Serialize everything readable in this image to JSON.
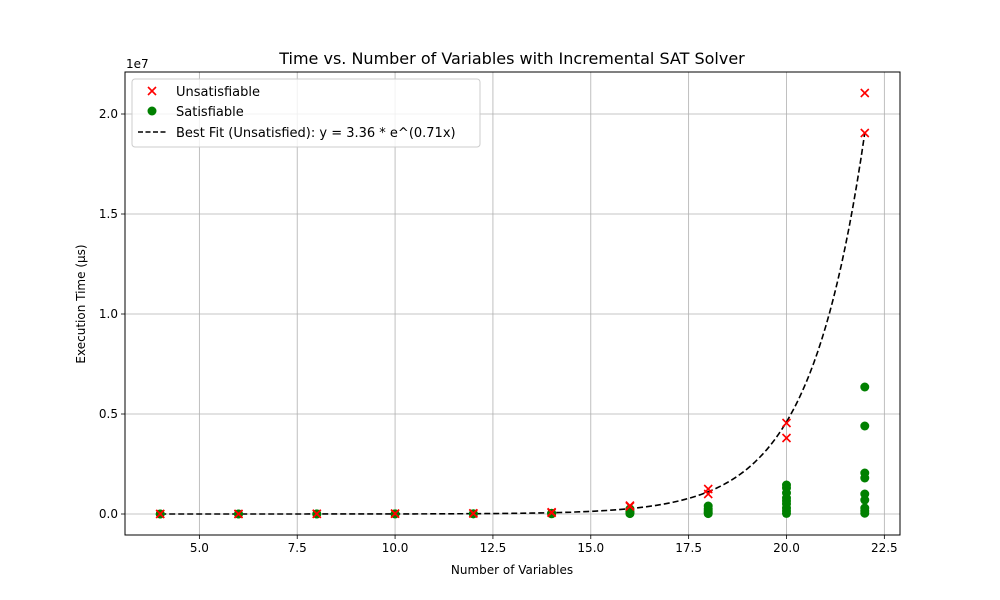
{
  "chart_data": {
    "type": "scatter",
    "title": "Time vs. Number of Variables with Incremental SAT Solver",
    "xlabel": "Number of Variables",
    "ylabel": "Execution Time (μs)",
    "y_multiplier_label": "1e7",
    "xlim": [
      3.1,
      22.9
    ],
    "ylim": [
      -1050000,
      22100000
    ],
    "x_ticks": [
      5.0,
      7.5,
      10.0,
      12.5,
      15.0,
      17.5,
      20.0,
      22.5
    ],
    "x_tick_labels": [
      "5.0",
      "7.5",
      "10.0",
      "12.5",
      "15.0",
      "17.5",
      "20.0",
      "22.5"
    ],
    "y_ticks": [
      0,
      5000000,
      10000000,
      15000000,
      20000000
    ],
    "y_tick_labels": [
      "0.0",
      "0.5",
      "1.0",
      "1.5",
      "2.0"
    ],
    "grid": true,
    "legend_position": "top-left",
    "series": [
      {
        "name": "Unsatisfiable",
        "marker": "x",
        "color": "#ff0000",
        "points": [
          [
            4,
            2000
          ],
          [
            4,
            3000
          ],
          [
            6,
            4000
          ],
          [
            6,
            6000
          ],
          [
            8,
            8000
          ],
          [
            8,
            12000
          ],
          [
            10,
            15000
          ],
          [
            10,
            20000
          ],
          [
            12,
            25000
          ],
          [
            12,
            35000
          ],
          [
            14,
            60000
          ],
          [
            14,
            90000
          ],
          [
            16,
            380000
          ],
          [
            16,
            420000
          ],
          [
            18,
            1000000
          ],
          [
            18,
            1250000
          ],
          [
            20,
            3800000
          ],
          [
            20,
            4550000
          ],
          [
            22,
            19050000
          ],
          [
            22,
            21050000
          ]
        ]
      },
      {
        "name": "Satisfiable",
        "marker": "o",
        "color": "#008000",
        "points": [
          [
            4,
            1000
          ],
          [
            4,
            2000
          ],
          [
            6,
            2000
          ],
          [
            6,
            3000
          ],
          [
            8,
            3000
          ],
          [
            8,
            5000
          ],
          [
            10,
            5000
          ],
          [
            10,
            8000
          ],
          [
            12,
            8000
          ],
          [
            12,
            15000
          ],
          [
            14,
            10000
          ],
          [
            14,
            40000
          ],
          [
            16,
            20000
          ],
          [
            16,
            60000
          ],
          [
            16,
            120000
          ],
          [
            16,
            250000
          ],
          [
            18,
            20000
          ],
          [
            18,
            80000
          ],
          [
            18,
            150000
          ],
          [
            18,
            250000
          ],
          [
            18,
            400000
          ],
          [
            20,
            30000
          ],
          [
            20,
            150000
          ],
          [
            20,
            300000
          ],
          [
            20,
            500000
          ],
          [
            20,
            650000
          ],
          [
            20,
            800000
          ],
          [
            20,
            1050000
          ],
          [
            20,
            1300000
          ],
          [
            20,
            1450000
          ],
          [
            22,
            40000
          ],
          [
            22,
            150000
          ],
          [
            22,
            300000
          ],
          [
            22,
            700000
          ],
          [
            22,
            1000000
          ],
          [
            22,
            1800000
          ],
          [
            22,
            2050000
          ],
          [
            22,
            4400000
          ],
          [
            22,
            6350000
          ]
        ]
      },
      {
        "name": "Best Fit (Unsatisfied): y = 3.36 * e^(0.71x)",
        "type": "line",
        "style": "dashed",
        "color": "#000000",
        "fit": {
          "a": 3.36,
          "b": 0.71,
          "x_range": [
            4,
            22
          ]
        }
      }
    ]
  }
}
